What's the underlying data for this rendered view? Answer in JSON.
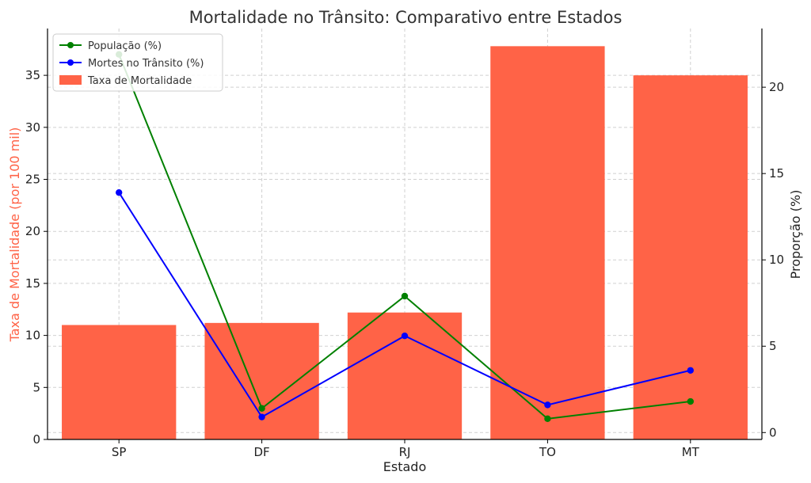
{
  "chart_data": {
    "type": "bar+line",
    "title": "Mortalidade no Trânsito: Comparativo entre Estados",
    "xlabel": "Estado",
    "ylabel_left": "Taxa de Mortalidade (por 100 mil)",
    "ylabel_right": "Proporção (%)",
    "categories": [
      "SP",
      "DF",
      "RJ",
      "TO",
      "MT"
    ],
    "bars": {
      "name": "Taxa de Mortalidade",
      "values": [
        11.0,
        11.2,
        12.2,
        37.8,
        35.0
      ],
      "color": "#ff6347"
    },
    "series": [
      {
        "name": "População (%)",
        "values": [
          21.9,
          1.4,
          7.9,
          0.8,
          1.8
        ],
        "color": "#008000"
      },
      {
        "name": "Mortes no Trânsito (%)",
        "values": [
          13.9,
          0.9,
          5.6,
          1.6,
          3.6
        ],
        "color": "#0000ff"
      }
    ],
    "ylim_left": [
      0,
      39.5
    ],
    "yticks_left": [
      0,
      5,
      10,
      15,
      20,
      25,
      30,
      35
    ],
    "ylim_right": [
      -0.4,
      23.4
    ],
    "yticks_right": [
      0,
      5,
      10,
      15,
      20
    ],
    "grid": true,
    "legend": "top-left",
    "left_label_color": "#ff6347"
  }
}
